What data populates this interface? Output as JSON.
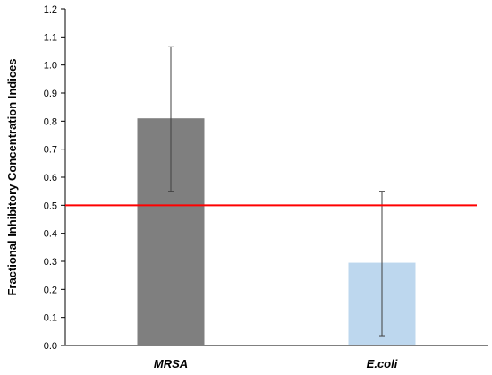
{
  "chart_data": {
    "type": "bar",
    "title": "",
    "xlabel": "",
    "ylabel": "Fractional Inhibitory Concentration Indices",
    "categories": [
      "MRSA",
      "E.coli"
    ],
    "values": [
      0.81,
      0.295
    ],
    "error_low": [
      0.55,
      0.035
    ],
    "error_high": [
      1.065,
      0.55
    ],
    "bar_colors": [
      "#7f7f7f",
      "#bdd7ee"
    ],
    "ylim": [
      0,
      1.2
    ],
    "yticks": [
      "0.0",
      "0.1",
      "0.2",
      "0.3",
      "0.4",
      "0.5",
      "0.6",
      "0.7",
      "0.8",
      "0.9",
      "1.0",
      "1.1",
      "1.2"
    ],
    "reference_line": {
      "value": 0.5,
      "color": "#ff0000"
    },
    "grid": false,
    "legend": "none"
  }
}
